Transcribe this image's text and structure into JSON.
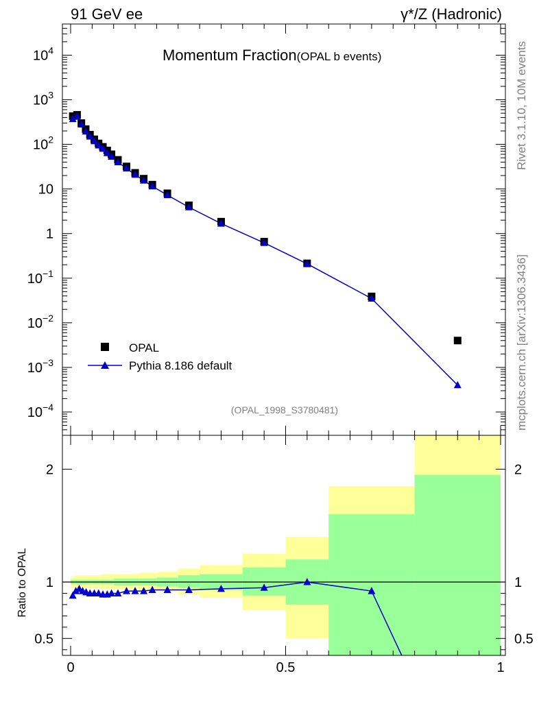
{
  "header": {
    "left_label": "91 GeV ee",
    "right_label": "γ*/Z (Hadronic)"
  },
  "title": {
    "main": "Momentum Fraction",
    "sub": "(OPAL b events)"
  },
  "side_text": {
    "top": "Rivet 3.1.10,  10M events",
    "bottom": "mcplots.cern.ch [arXiv:1306.3436]"
  },
  "analysis_id": "(OPAL_1998_S3780481)",
  "legend": {
    "data_label": "OPAL",
    "mc_label": "Pythia 8.186 default"
  },
  "colors": {
    "mc": "#0000cc",
    "data": "#000000",
    "band_inner": "#99ff99",
    "band_outer": "#ffff99"
  },
  "chart_data": [
    {
      "type": "scatter",
      "title": "Momentum Fraction",
      "subtitle": "(OPAL b events)",
      "xlabel": "",
      "ylabel": "",
      "xlim": [
        0,
        1
      ],
      "ylim": [
        3e-05,
        50000
      ],
      "yscale": "log",
      "y_ticks": [
        {
          "value": 10000,
          "base": "10",
          "exp": "4"
        },
        {
          "value": 1000,
          "base": "10",
          "exp": "3"
        },
        {
          "value": 100,
          "base": "10",
          "exp": "2"
        },
        {
          "value": 10,
          "base": "10",
          "exp": ""
        },
        {
          "value": 1,
          "base": "1",
          "exp": ""
        },
        {
          "value": 0.1,
          "base": "10",
          "exp": "−1"
        },
        {
          "value": 0.01,
          "base": "10",
          "exp": "−2"
        },
        {
          "value": 0.001,
          "base": "10",
          "exp": "−3"
        },
        {
          "value": 0.0001,
          "base": "10",
          "exp": "−4"
        }
      ],
      "legend_position": "bottom-left",
      "series": [
        {
          "name": "OPAL",
          "marker": "square",
          "x": [
            0.005,
            0.015,
            0.025,
            0.035,
            0.045,
            0.055,
            0.065,
            0.075,
            0.085,
            0.095,
            0.11,
            0.13,
            0.15,
            0.17,
            0.19,
            0.225,
            0.275,
            0.35,
            0.45,
            0.55,
            0.7,
            0.9
          ],
          "y": [
            430,
            460,
            300,
            220,
            165,
            130,
            105,
            88,
            73,
            60,
            45,
            32,
            23,
            17,
            12.5,
            8.0,
            4.3,
            1.85,
            0.66,
            0.215,
            0.039,
            0.004
          ]
        },
        {
          "name": "Pythia 8.186 default",
          "marker": "triangle",
          "x": [
            0.005,
            0.015,
            0.025,
            0.035,
            0.045,
            0.055,
            0.065,
            0.075,
            0.085,
            0.095,
            0.11,
            0.13,
            0.15,
            0.17,
            0.19,
            0.225,
            0.275,
            0.35,
            0.45,
            0.55,
            0.7,
            0.9
          ],
          "y": [
            370,
            420,
            280,
            195,
            150,
            118,
            95,
            80,
            64,
            53,
            40,
            29,
            21,
            15.5,
            11.5,
            7.3,
            3.9,
            1.68,
            0.62,
            0.21,
            0.035,
            0.0004
          ]
        }
      ]
    },
    {
      "type": "scatter",
      "title": "",
      "xlabel": "",
      "ylabel": "Ratio to OPAL",
      "xlim": [
        0,
        1
      ],
      "ylim": [
        0.35,
        2.3
      ],
      "x_ticks": [
        {
          "value": 0,
          "label": "0"
        },
        {
          "value": 0.5,
          "label": "0.5"
        },
        {
          "value": 1,
          "label": "1"
        }
      ],
      "y_ticks": [
        {
          "value": 2,
          "label": "2"
        },
        {
          "value": 1,
          "label": "1"
        },
        {
          "value": 0.5,
          "label": "0.5"
        }
      ],
      "reference_line": 1,
      "bands": [
        {
          "x0": 0.0,
          "x1": 0.01,
          "inner": [
            0.98,
            1.02
          ],
          "outer": [
            0.95,
            1.05
          ]
        },
        {
          "x0": 0.01,
          "x1": 0.02,
          "inner": [
            0.98,
            1.02
          ],
          "outer": [
            0.95,
            1.06
          ]
        },
        {
          "x0": 0.02,
          "x1": 0.03,
          "inner": [
            0.98,
            1.02
          ],
          "outer": [
            0.95,
            1.06
          ]
        },
        {
          "x0": 0.03,
          "x1": 0.05,
          "inner": [
            0.98,
            1.02
          ],
          "outer": [
            0.95,
            1.06
          ]
        },
        {
          "x0": 0.05,
          "x1": 0.07,
          "inner": [
            0.98,
            1.02
          ],
          "outer": [
            0.95,
            1.06
          ]
        },
        {
          "x0": 0.07,
          "x1": 0.1,
          "inner": [
            0.98,
            1.02
          ],
          "outer": [
            0.94,
            1.07
          ]
        },
        {
          "x0": 0.1,
          "x1": 0.12,
          "inner": [
            0.97,
            1.03
          ],
          "outer": [
            0.94,
            1.07
          ]
        },
        {
          "x0": 0.12,
          "x1": 0.16,
          "inner": [
            0.97,
            1.03
          ],
          "outer": [
            0.94,
            1.07
          ]
        },
        {
          "x0": 0.16,
          "x1": 0.2,
          "inner": [
            0.97,
            1.03
          ],
          "outer": [
            0.93,
            1.08
          ]
        },
        {
          "x0": 0.2,
          "x1": 0.25,
          "inner": [
            0.96,
            1.04
          ],
          "outer": [
            0.91,
            1.09
          ]
        },
        {
          "x0": 0.25,
          "x1": 0.3,
          "inner": [
            0.95,
            1.06
          ],
          "outer": [
            0.89,
            1.12
          ]
        },
        {
          "x0": 0.3,
          "x1": 0.4,
          "inner": [
            0.93,
            1.07
          ],
          "outer": [
            0.86,
            1.15
          ]
        },
        {
          "x0": 0.4,
          "x1": 0.5,
          "inner": [
            0.88,
            1.13
          ],
          "outer": [
            0.75,
            1.25
          ]
        },
        {
          "x0": 0.5,
          "x1": 0.6,
          "inner": [
            0.8,
            1.2
          ],
          "outer": [
            0.5,
            1.4
          ]
        },
        {
          "x0": 0.6,
          "x1": 0.8,
          "inner": [
            0.35,
            1.6
          ],
          "outer": [
            0.35,
            1.85
          ]
        },
        {
          "x0": 0.8,
          "x1": 1.0,
          "inner": [
            0.35,
            1.95
          ],
          "outer": [
            0.35,
            2.3
          ]
        }
      ],
      "series": [
        {
          "name": "Pythia 8.186 default",
          "marker": "triangle",
          "x": [
            0.005,
            0.012,
            0.02,
            0.028,
            0.036,
            0.045,
            0.055,
            0.065,
            0.075,
            0.085,
            0.095,
            0.11,
            0.13,
            0.15,
            0.17,
            0.19,
            0.225,
            0.275,
            0.35,
            0.45,
            0.55,
            0.7,
            0.77
          ],
          "y": [
            0.88,
            0.92,
            0.94,
            0.92,
            0.91,
            0.9,
            0.9,
            0.9,
            0.89,
            0.89,
            0.9,
            0.9,
            0.92,
            0.92,
            0.92,
            0.93,
            0.93,
            0.93,
            0.94,
            0.95,
            1.0,
            0.92,
            0.35
          ]
        }
      ]
    }
  ]
}
